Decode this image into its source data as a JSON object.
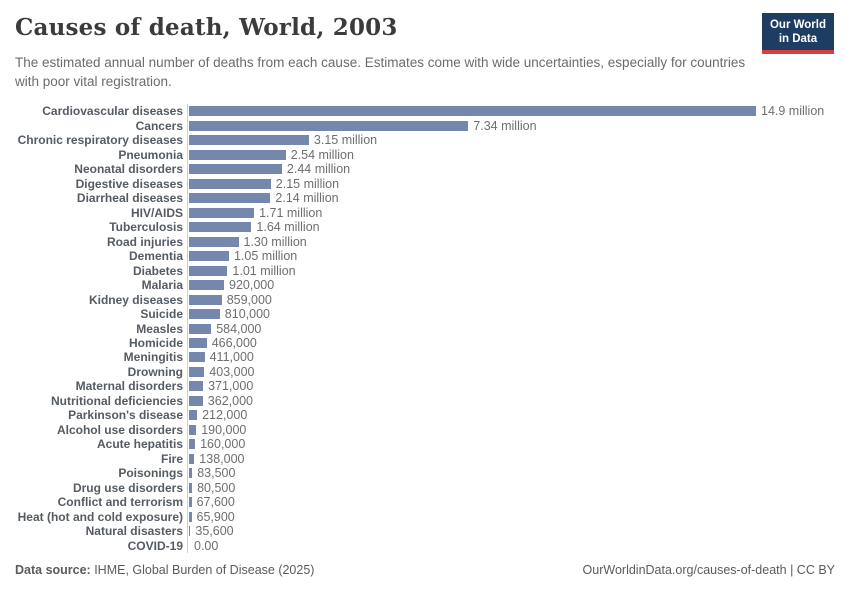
{
  "header": {
    "title": "Causes of death, World, 2003",
    "subtitle": "The estimated annual number of deaths from each cause. Estimates come with wide uncertainties, especially for countries with poor vital registration.",
    "logo": {
      "line1": "Our World",
      "line2": "in Data"
    }
  },
  "colors": {
    "bar": "#7687ae",
    "logo_navy": "#1d3d63",
    "logo_red": "#d93d3e",
    "axis_line": "#ccd1d8",
    "category_label": "#545b63",
    "value_label": "#6e6e6e"
  },
  "chart_data": {
    "type": "bar",
    "orientation": "horizontal",
    "title": "Causes of death, World, 2003",
    "xlabel": "",
    "ylabel": "",
    "grid": false,
    "legend": "none",
    "xlim": [
      0,
      14900000
    ],
    "bar_color": "#7687ae",
    "categories": [
      "Cardiovascular diseases",
      "Cancers",
      "Chronic respiratory diseases",
      "Pneumonia",
      "Neonatal disorders",
      "Digestive diseases",
      "Diarrheal diseases",
      "HIV/AIDS",
      "Tuberculosis",
      "Road injuries",
      "Dementia",
      "Diabetes",
      "Malaria",
      "Kidney diseases",
      "Suicide",
      "Measles",
      "Homicide",
      "Meningitis",
      "Drowning",
      "Maternal disorders",
      "Nutritional deficiencies",
      "Parkinson's disease",
      "Alcohol use disorders",
      "Acute hepatitis",
      "Fire",
      "Poisonings",
      "Drug use disorders",
      "Conflict and terrorism",
      "Heat (hot and cold exposure)",
      "Natural disasters",
      "COVID-19"
    ],
    "values": [
      14900000,
      7340000,
      3150000,
      2540000,
      2440000,
      2150000,
      2140000,
      1710000,
      1640000,
      1300000,
      1050000,
      1010000,
      920000,
      859000,
      810000,
      584000,
      466000,
      411000,
      403000,
      371000,
      362000,
      212000,
      190000,
      160000,
      138000,
      83500,
      80500,
      67600,
      65900,
      35600,
      0
    ],
    "value_labels": [
      "14.9 million",
      "7.34 million",
      "3.15 million",
      "2.54 million",
      "2.44 million",
      "2.15 million",
      "2.14 million",
      "1.71 million",
      "1.64 million",
      "1.30 million",
      "1.05 million",
      "1.01 million",
      "920,000",
      "859,000",
      "810,000",
      "584,000",
      "466,000",
      "411,000",
      "403,000",
      "371,000",
      "362,000",
      "212,000",
      "190,000",
      "160,000",
      "138,000",
      "83,500",
      "80,500",
      "67,600",
      "65,900",
      "35,600",
      "0.00"
    ]
  },
  "footer": {
    "datasource_label": "Data source:",
    "datasource_value": " IHME, Global Burden of Disease (2025)",
    "link": "OurWorldinData.org/causes-of-death",
    "license": " | CC BY"
  }
}
